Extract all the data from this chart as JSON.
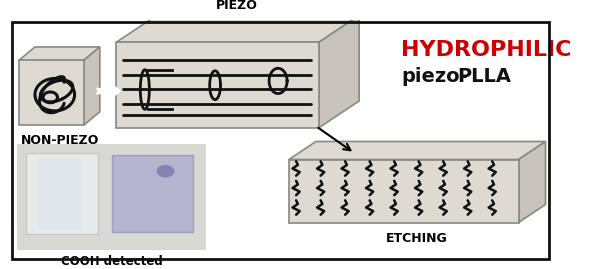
{
  "bg_color": "#ffffff",
  "border_color": "#111111",
  "title_hydrophilic": "HYDROPHILIC",
  "title_piezoplla": "piezo-PLLA",
  "label_nonpiezo": "NON-PIEZO",
  "label_piezo": "PIEZO",
  "label_cooh": "COOH detected",
  "label_etching": "ETCHING",
  "hydrophilic_color": "#cc0000",
  "piezoplla_color": "#111111",
  "slab_color": "#dedad2",
  "slab_edge": "#888880",
  "slab_side_top": "#c8c3bc",
  "slab_side_bottom": "#b0aba4",
  "outline_color": "#111111",
  "figsize": [
    6.02,
    2.69
  ],
  "dpi": 100
}
